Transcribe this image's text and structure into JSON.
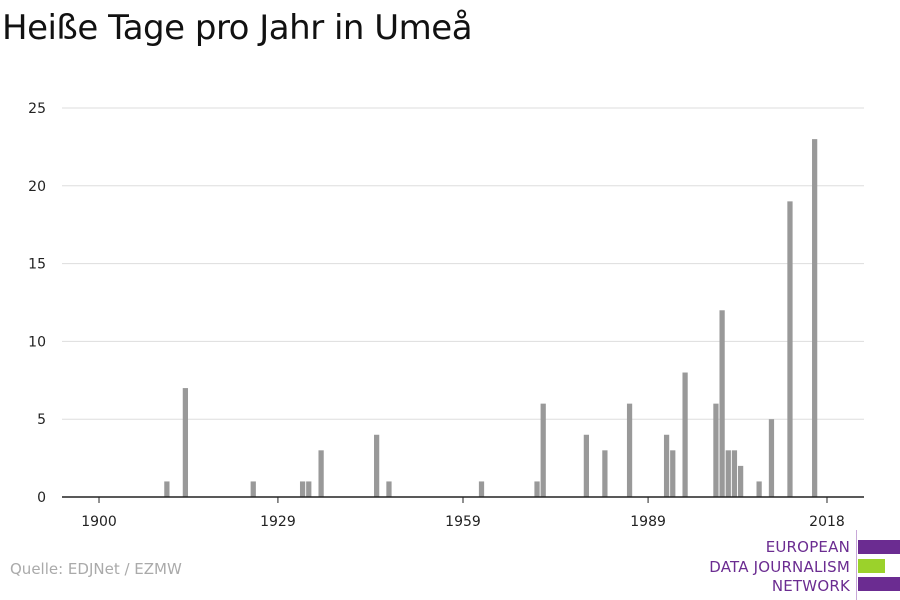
{
  "title": "Heiße Tage pro Jahr in Umeå",
  "source": "Quelle: EDJNet / EZMW",
  "logo": {
    "lines": [
      "EUROPEAN",
      "DATA JOURNALISM",
      "NETWORK"
    ],
    "colors": {
      "purple": "#6b2c91",
      "green": "#9bd22b"
    }
  },
  "chart_data": {
    "type": "bar",
    "title": "Heiße Tage pro Jahr in Umeå",
    "xlabel": "",
    "ylabel": "",
    "xlim": [
      1894,
      2024
    ],
    "ylim": [
      0,
      25
    ],
    "xticks": [
      1900,
      1929,
      1959,
      1989,
      2018
    ],
    "yticks": [
      0,
      5,
      10,
      15,
      20,
      25
    ],
    "grid": true,
    "bar_color": "#999999",
    "x": [
      1911,
      1914,
      1925,
      1933,
      1934,
      1936,
      1945,
      1947,
      1962,
      1971,
      1972,
      1979,
      1982,
      1986,
      1992,
      1993,
      1995,
      2000,
      2001,
      2002,
      2003,
      2004,
      2007,
      2009,
      2012,
      2016
    ],
    "values": [
      1,
      7,
      1,
      1,
      1,
      3,
      4,
      1,
      1,
      1,
      6,
      4,
      3,
      6,
      4,
      3,
      8,
      6,
      12,
      3,
      3,
      2,
      1,
      5,
      19,
      23
    ]
  }
}
